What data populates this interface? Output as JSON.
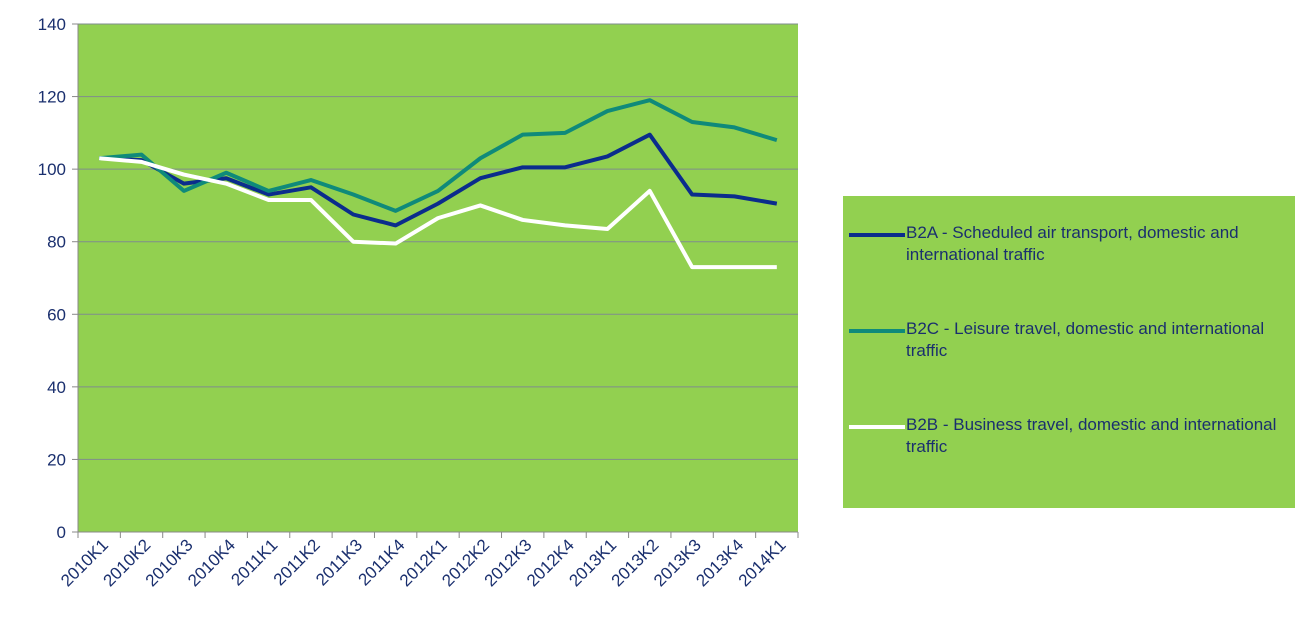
{
  "chart_data": {
    "type": "line",
    "categories": [
      "2010K1",
      "2010K2",
      "2010K3",
      "2010K4",
      "2011K1",
      "2011K2",
      "2011K3",
      "2011K4",
      "2012K1",
      "2012K2",
      "2012K3",
      "2012K4",
      "2013K1",
      "2013K2",
      "2013K3",
      "2013K4",
      "2014K1"
    ],
    "series": [
      {
        "name": "B2A - Scheduled air transport, domestic and international traffic",
        "color": "#0b2c8c",
        "values": [
          103,
          102.5,
          96,
          97.5,
          93,
          95,
          87.5,
          84.5,
          90.5,
          97.5,
          100.5,
          100.5,
          103.5,
          109.5,
          93,
          92.5,
          90.5
        ]
      },
      {
        "name": "B2C - Leisure travel, domestic and international traffic",
        "color": "#0f8a7a",
        "values": [
          103,
          104,
          94,
          99,
          94,
          97,
          93,
          88.5,
          94,
          103,
          109.5,
          110,
          116,
          119,
          113,
          111.5,
          108
        ]
      },
      {
        "name": "B2B - Business travel, domestic and international traffic",
        "color": "#ffffff",
        "values": [
          103,
          102,
          98.5,
          96,
          91.5,
          91.5,
          80,
          79.5,
          86.5,
          90,
          86,
          84.5,
          83.5,
          94,
          73,
          73,
          73
        ]
      }
    ],
    "ylim": [
      0,
      140
    ],
    "yticks": [
      0,
      20,
      40,
      60,
      80,
      100,
      120,
      140
    ],
    "grid": true,
    "plot_color": "#92d050",
    "legend": "right"
  }
}
